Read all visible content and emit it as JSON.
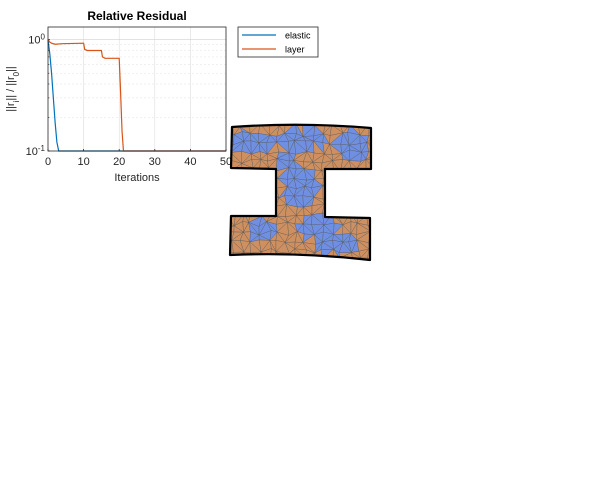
{
  "chart_data": {
    "type": "line",
    "title": "Relative Residual",
    "xlabel": "Iterations",
    "ylabel_parts": [
      "||r",
      "i",
      "|| / ||r",
      "0",
      "||"
    ],
    "xlim": [
      0,
      50
    ],
    "ylim": [
      0.1,
      1.3
    ],
    "yscale": "log",
    "grid": true,
    "x_ticks": [
      0,
      10,
      20,
      30,
      40,
      50
    ],
    "y_ticks": [
      {
        "base": "10",
        "exp": "0",
        "value": 1
      },
      {
        "base": "10",
        "exp": "-1",
        "value": 0.1
      }
    ],
    "legend_position": "outside-right-top",
    "series": [
      {
        "name": "elastic",
        "color": "#0072BD",
        "points": [
          [
            0,
            1.0
          ],
          [
            0.5,
            0.75
          ],
          [
            1,
            0.5
          ],
          [
            1.5,
            0.3
          ],
          [
            2,
            0.18
          ],
          [
            2.5,
            0.12
          ],
          [
            3,
            0.1
          ],
          [
            50,
            0.1
          ]
        ]
      },
      {
        "name": "layer",
        "color": "#D95319",
        "points": [
          [
            0,
            1.0
          ],
          [
            0.5,
            0.95
          ],
          [
            1,
            0.93
          ],
          [
            2,
            0.91
          ],
          [
            4,
            0.92
          ],
          [
            10,
            0.93
          ],
          [
            10.3,
            0.82
          ],
          [
            11,
            0.8
          ],
          [
            15,
            0.8
          ],
          [
            15.3,
            0.7
          ],
          [
            16,
            0.68
          ],
          [
            20,
            0.68
          ],
          [
            20.3,
            0.4
          ],
          [
            20.8,
            0.15
          ],
          [
            21.2,
            0.1
          ],
          [
            50,
            0.1
          ]
        ]
      }
    ]
  },
  "mesh": {
    "colors": {
      "blue": "#6F8FE3",
      "orange": "#CE9060",
      "edge": "#555555",
      "outline": "#000000"
    }
  }
}
